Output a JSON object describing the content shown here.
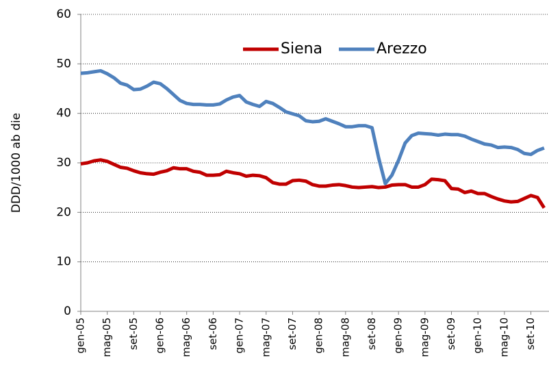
{
  "chart_data": {
    "type": "line",
    "y_label": "DDD/1000 ab die",
    "categories": [
      "gen-05",
      null,
      null,
      null,
      "mag-05",
      null,
      null,
      null,
      "set-05",
      null,
      null,
      null,
      "gen-06",
      null,
      null,
      null,
      "mag-06",
      null,
      null,
      null,
      "set-06",
      null,
      null,
      null,
      "gen-07",
      null,
      null,
      null,
      "mag-07",
      null,
      null,
      null,
      "set-07",
      null,
      null,
      null,
      "gen-08",
      null,
      null,
      null,
      "mag-08",
      null,
      null,
      null,
      "set-08",
      null,
      null,
      null,
      "gen-09",
      null,
      null,
      null,
      "mag-09",
      null,
      null,
      null,
      "set-09",
      null,
      null,
      null,
      "gen-10",
      null,
      null,
      null,
      "mag-10",
      null,
      null,
      null,
      "set-10",
      null,
      null
    ],
    "series": [
      {
        "name": "Siena",
        "color": "#c00000",
        "values": [
          29.8,
          30.0,
          30.4,
          30.6,
          30.3,
          29.7,
          29.1,
          28.9,
          28.4,
          28.0,
          27.8,
          27.7,
          28.1,
          28.4,
          29.0,
          28.8,
          28.8,
          28.3,
          28.1,
          27.5,
          27.5,
          27.6,
          28.3,
          28.0,
          27.8,
          27.3,
          27.5,
          27.4,
          27.0,
          26.0,
          25.7,
          25.7,
          26.4,
          26.5,
          26.3,
          25.6,
          25.3,
          25.3,
          25.5,
          25.6,
          25.4,
          25.1,
          25.0,
          25.1,
          25.2,
          25.0,
          25.1,
          25.5,
          25.6,
          25.6,
          25.1,
          25.1,
          25.6,
          26.7,
          26.6,
          26.4,
          24.8,
          24.7,
          24.0,
          24.3,
          23.8,
          23.8,
          23.2,
          22.7,
          22.3,
          22.1,
          22.2,
          22.8,
          23.4,
          23.0,
          20.9
        ]
      },
      {
        "name": "Arezzo",
        "color": "#4f81bd",
        "values": [
          48.1,
          48.2,
          48.4,
          48.6,
          48.0,
          47.2,
          46.1,
          45.7,
          44.8,
          44.9,
          45.5,
          46.3,
          46.0,
          45.0,
          43.8,
          42.6,
          42.0,
          41.8,
          41.8,
          41.7,
          41.7,
          41.9,
          42.7,
          43.3,
          43.6,
          42.3,
          41.8,
          41.4,
          42.4,
          42.0,
          41.2,
          40.3,
          39.9,
          39.5,
          38.5,
          38.3,
          38.4,
          38.9,
          38.4,
          37.9,
          37.3,
          37.3,
          37.5,
          37.5,
          37.1,
          31.0,
          25.8,
          27.5,
          30.5,
          34.0,
          35.5,
          36.0,
          35.9,
          35.8,
          35.6,
          35.8,
          35.7,
          35.7,
          35.4,
          34.8,
          34.3,
          33.8,
          33.6,
          33.1,
          33.2,
          33.1,
          32.7,
          31.9,
          31.7,
          32.5,
          33.0
        ]
      }
    ],
    "ylim": [
      0,
      60
    ],
    "yticks": [
      0,
      10,
      20,
      30,
      40,
      50,
      60
    ],
    "grid": true,
    "legend": "top"
  }
}
